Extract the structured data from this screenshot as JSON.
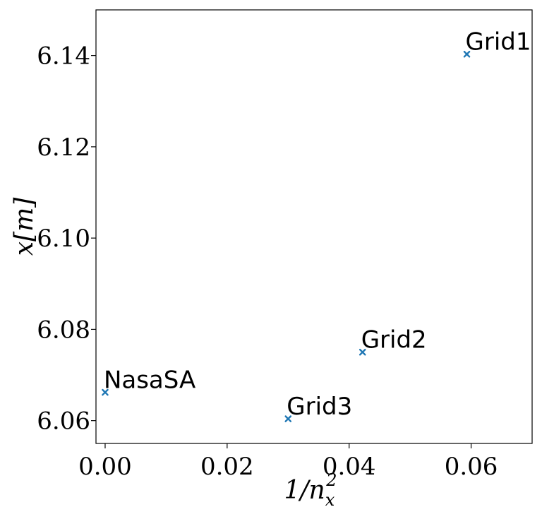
{
  "chart_data": {
    "type": "scatter",
    "title": "",
    "xlabel": "1/n_x^2",
    "xlabel_parts": {
      "base": "1/n",
      "sub": "x",
      "sup": "2"
    },
    "ylabel": "x[m]",
    "xlim": [
      -0.0015,
      0.07
    ],
    "ylim": [
      6.055,
      6.15
    ],
    "xticks": [
      0.0,
      0.02,
      0.04,
      0.06
    ],
    "xtick_labels": [
      "0.00",
      "0.02",
      "0.04",
      "0.06"
    ],
    "yticks": [
      6.06,
      6.08,
      6.1,
      6.12,
      6.14
    ],
    "ytick_labels": [
      "6.06",
      "6.08",
      "6.10",
      "6.12",
      "6.14"
    ],
    "grid": false,
    "marker": "x",
    "color": "#1f77b4",
    "points": [
      {
        "label": "Grid1",
        "x": 0.0593,
        "y": 6.1403
      },
      {
        "label": "Grid2",
        "x": 0.0422,
        "y": 6.075
      },
      {
        "label": "Grid3",
        "x": 0.03,
        "y": 6.0604
      },
      {
        "label": "NasaSA",
        "x": 0.0,
        "y": 6.0662
      }
    ]
  }
}
